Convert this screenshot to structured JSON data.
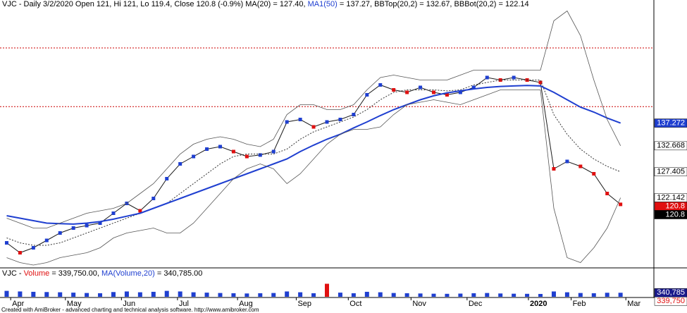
{
  "chart_data": [
    {
      "type": "line",
      "title_parts": [
        {
          "text": "VJC - Daily 3/2/2020 Open 121, Hi 121, Lo 119.4, Close 120.8 (-0.9%) MA(20) = 127.40, ",
          "color": "#000000"
        },
        {
          "text": "MA1(50)",
          "color": "#1f3fd0"
        },
        {
          "text": " = 137.27, BBTop(20,2) = 132.67, BBBot(20,2) = 122.14",
          "color": "#000000"
        }
      ],
      "xlim": [
        -0.5,
        48.5
      ],
      "ylim": [
        108.5,
        160.5
      ],
      "hlines": [
        152.5,
        140.6
      ],
      "hline_color": "#cc0000",
      "series": [
        {
          "color": "#1a1a1a",
          "style": "price",
          "values": [
            113,
            111,
            112,
            113.5,
            115,
            116,
            116.5,
            117,
            119,
            121,
            119.5,
            122,
            126,
            129,
            130.5,
            132,
            132.5,
            131.5,
            130.5,
            130.8,
            131.5,
            137.5,
            138,
            136.5,
            137.5,
            138,
            139,
            143,
            145,
            144,
            143.5,
            144.5,
            143.5,
            143,
            143.5,
            144.5,
            146.5,
            146,
            146.5,
            146,
            145.5,
            128,
            129.5,
            128.5,
            127,
            123,
            120.8
          ]
        },
        {
          "color": "#333333",
          "style": "dotted",
          "values": [
            114,
            113,
            112.5,
            112.5,
            113,
            114,
            115,
            116,
            117,
            118,
            119,
            120,
            121,
            123,
            125,
            127,
            129,
            130.5,
            131,
            131,
            131,
            132,
            134,
            135.5,
            136.5,
            137.5,
            138.5,
            140,
            142,
            143.5,
            144,
            144,
            144,
            143.8,
            144,
            145,
            145.5,
            146,
            146,
            146,
            146,
            139,
            135,
            132,
            130,
            128.5,
            127.4
          ]
        },
        {
          "color": "#1f3fd0",
          "style": "solid",
          "values": [
            118.5,
            118,
            117.5,
            117,
            116.9,
            116.8,
            117,
            117.3,
            117.8,
            118.4,
            119,
            120,
            121,
            122,
            123,
            124,
            125,
            126,
            127,
            128,
            129,
            130,
            131.5,
            132.8,
            134,
            135,
            136.3,
            137.5,
            138.8,
            140,
            141,
            142,
            142.8,
            143.4,
            143.8,
            144.2,
            144.5,
            144.7,
            144.8,
            144.9,
            144.8,
            143.5,
            142,
            140.5,
            139.5,
            138.3,
            137.27
          ]
        },
        {
          "color": "#555555",
          "style": "thin",
          "values": [
            118,
            117,
            116,
            116,
            117,
            118,
            119,
            119.5,
            120,
            121,
            123,
            125,
            128,
            131,
            133,
            134,
            134.5,
            134,
            133,
            132.5,
            134,
            139,
            141,
            141,
            140,
            140,
            141,
            144,
            146.5,
            147,
            146.5,
            146,
            146,
            146,
            147,
            148,
            148,
            148,
            148,
            148,
            148,
            158,
            160,
            155,
            146,
            138,
            132.67
          ]
        },
        {
          "color": "#555555",
          "style": "thin",
          "values": [
            110,
            109,
            108.5,
            109,
            110,
            110.5,
            111,
            112,
            114,
            115,
            115.5,
            116,
            115,
            115,
            117,
            120,
            123,
            126,
            128,
            129,
            128,
            125,
            127,
            130,
            133,
            135,
            136,
            136,
            136.5,
            139,
            141,
            141.5,
            142,
            141.5,
            141,
            142,
            143,
            144,
            144,
            144,
            144,
            120,
            110,
            109,
            112,
            116,
            122.14
          ]
        }
      ],
      "up_color": "#1f3fd0",
      "down_color": "#e01010",
      "price_labels": [
        {
          "value": 137.272,
          "bg": "#1f3fd0",
          "fg": "#ffffff"
        },
        {
          "value": 132.668,
          "bg": "#ffffff",
          "fg": "#000000"
        },
        {
          "value": 127.405,
          "bg": "#ffffff",
          "fg": "#000000"
        },
        {
          "value": 122.142,
          "bg": "#ffffff",
          "fg": "#000000"
        },
        {
          "value": 120.8,
          "bg": "#e01010",
          "fg": "#ffffff"
        },
        {
          "value": 120.8,
          "bg": "#000000",
          "fg": "#ffffff"
        }
      ]
    },
    {
      "type": "bar",
      "title_parts": [
        {
          "text": "VJC - ",
          "color": "#000000"
        },
        {
          "text": "Volume",
          "color": "#e01010"
        },
        {
          "text": " = 339,750.00, ",
          "color": "#000000"
        },
        {
          "text": "MA(Volume,20)",
          "color": "#1f3fd0"
        },
        {
          "text": " = 340,785.00",
          "color": "#000000"
        }
      ],
      "xlim": [
        -0.5,
        48.5
      ],
      "ylim": [
        0,
        1250000
      ],
      "color": "#1f3fd0",
      "spike_color": "#e01010",
      "values": [
        500000,
        450000,
        420000,
        400000,
        380000,
        350000,
        320000,
        300000,
        400000,
        450000,
        380000,
        420000,
        500000,
        450000,
        380000,
        350000,
        320000,
        300000,
        280000,
        300000,
        320000,
        450000,
        380000,
        300000,
        1100000,
        350000,
        300000,
        420000,
        380000,
        320000,
        300000,
        280000,
        260000,
        250000,
        270000,
        300000,
        320000,
        280000,
        260000,
        250000,
        240000,
        450000,
        380000,
        320000,
        300000,
        340000,
        339750
      ],
      "value_labels_right": [
        {
          "value": 340785,
          "label": "340,785",
          "bg": "#1a1a8c",
          "fg": "#ffffff"
        },
        {
          "value": 339750,
          "label": "339,750",
          "bg": "#ffffff",
          "fg": "#e01010"
        }
      ],
      "xticks": [
        {
          "value": 0.3,
          "label": "Apr"
        },
        {
          "value": 4.4,
          "label": "May"
        },
        {
          "value": 8.6,
          "label": "Jun"
        },
        {
          "value": 12.8,
          "label": "Jul"
        },
        {
          "value": 17.3,
          "label": "Aug"
        },
        {
          "value": 21.7,
          "label": "Sep"
        },
        {
          "value": 25.6,
          "label": "Oct"
        },
        {
          "value": 30.3,
          "label": "Nov"
        },
        {
          "value": 34.5,
          "label": "Dec"
        },
        {
          "value": 39.1,
          "label": "2020"
        },
        {
          "value": 42.3,
          "label": "Feb"
        },
        {
          "value": 46.4,
          "label": "Mar"
        }
      ]
    }
  ],
  "footer": "Created with AmiBroker - advanced charting and technical analysis software. http://www.amibroker.com"
}
